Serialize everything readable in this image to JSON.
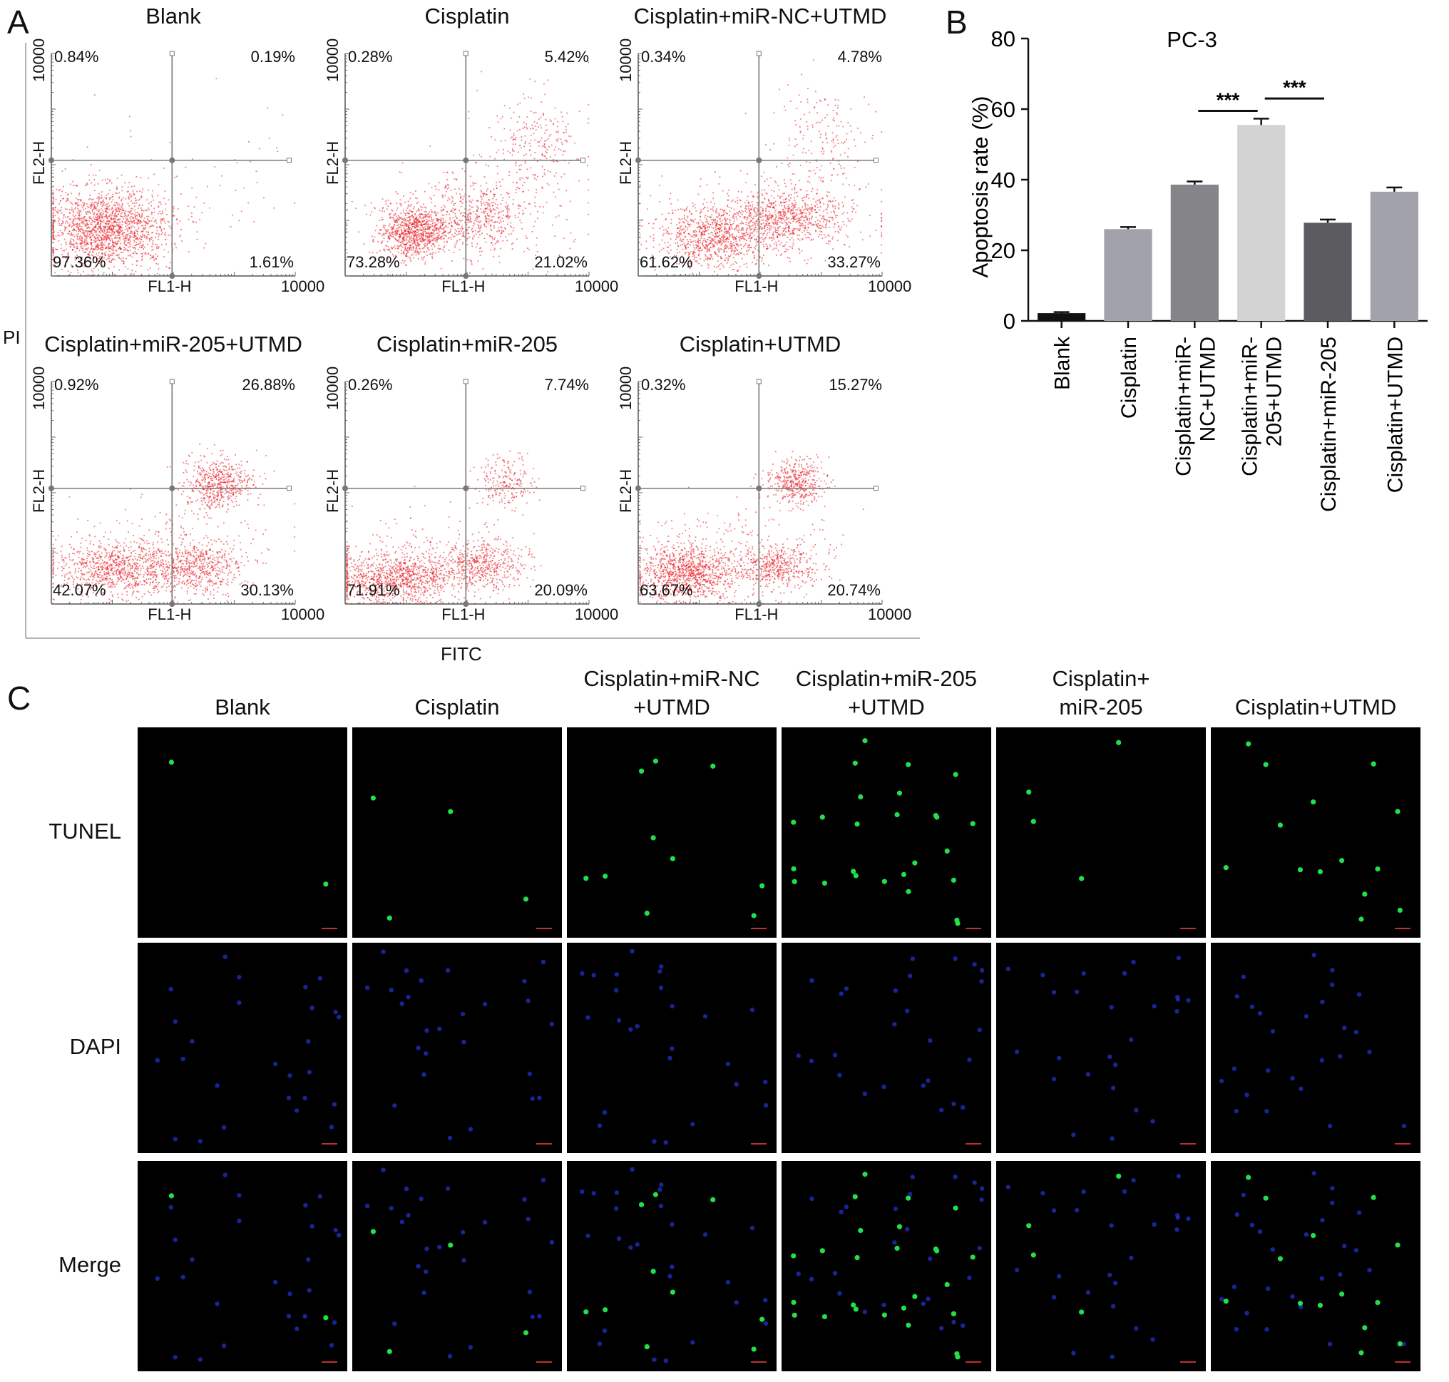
{
  "panels": {
    "a": "A",
    "b": "B",
    "c": "C"
  },
  "flow": {
    "pi_label": "PI",
    "fitc_label": "FITC",
    "x_axis_label": "FL1-H",
    "y_axis_label": "FL2-H",
    "x_max": "10000",
    "y_max": "10000",
    "plots": [
      {
        "title": "Blank",
        "ul": "0.84%",
        "ur": "0.19%",
        "ll": "97.36%",
        "lr": "1.61%"
      },
      {
        "title": "Cisplatin",
        "ul": "0.28%",
        "ur": "5.42%",
        "ll": "73.28%",
        "lr": "21.02%"
      },
      {
        "title": "Cisplatin+miR-NC+UTMD",
        "ul": "0.34%",
        "ur": "4.78%",
        "ll": "61.62%",
        "lr": "33.27%"
      },
      {
        "title": "Cisplatin+miR-205+UTMD",
        "ul": "0.92%",
        "ur": "26.88%",
        "ll": "42.07%",
        "lr": "30.13%"
      },
      {
        "title": "Cisplatin+miR-205",
        "ul": "0.26%",
        "ur": "7.74%",
        "ll": "71.91%",
        "lr": "20.09%"
      },
      {
        "title": "Cisplatin+UTMD",
        "ul": "0.32%",
        "ur": "15.27%",
        "ll": "63.67%",
        "lr": "20.74%"
      }
    ],
    "dot_color": "#e8141b"
  },
  "chart_data": {
    "type": "bar",
    "title": "PC-3",
    "ylabel": "Apoptosis rate (%)",
    "xlabel": "",
    "ylim": [
      0,
      80
    ],
    "yticks": [
      "0",
      "20",
      "40",
      "60",
      "80"
    ],
    "categories": [
      "Blank",
      "Cisplatin",
      "Cisplatin+miR-NC+UTMD",
      "Cisplatin+miR-205+UTMD",
      "Cisplatin+miR-205",
      "Cisplatin+UTMD"
    ],
    "category_lines": [
      [
        "Blank"
      ],
      [
        "Cisplatin"
      ],
      [
        "Cisplatin+miR-",
        "NC+UTMD"
      ],
      [
        "Cisplatin+miR-",
        "205+UTMD"
      ],
      [
        "Cisplatin+miR-205"
      ],
      [
        "Cisplatin+UTMD"
      ]
    ],
    "values": [
      2.2,
      26,
      38.6,
      55.5,
      27.8,
      36.6
    ],
    "errors": [
      0.3,
      0.6,
      0.9,
      1.8,
      0.9,
      1.2
    ],
    "colors": [
      "#111111",
      "#a2a2ad",
      "#858589",
      "#d3d3d3",
      "#5c5c60",
      "#a2a2ad"
    ],
    "significance": [
      {
        "label": "***"
      },
      {
        "label": "***"
      }
    ]
  },
  "tunel": {
    "columns": [
      [
        "Blank"
      ],
      [
        "Cisplatin"
      ],
      [
        "Cisplatin+miR-NC",
        "+UTMD"
      ],
      [
        "Cisplatin+miR-205",
        "+UTMD"
      ],
      [
        "Cisplatin+",
        "miR-205"
      ],
      [
        "Cisplatin+UTMD"
      ]
    ],
    "rows": [
      "TUNEL",
      "DAPI",
      "Merge"
    ],
    "green_counts": [
      2,
      4,
      10,
      26,
      4,
      14
    ],
    "colors": {
      "tunel": "#22e04a",
      "dapi": "#2230c8",
      "background": "#000000"
    }
  }
}
